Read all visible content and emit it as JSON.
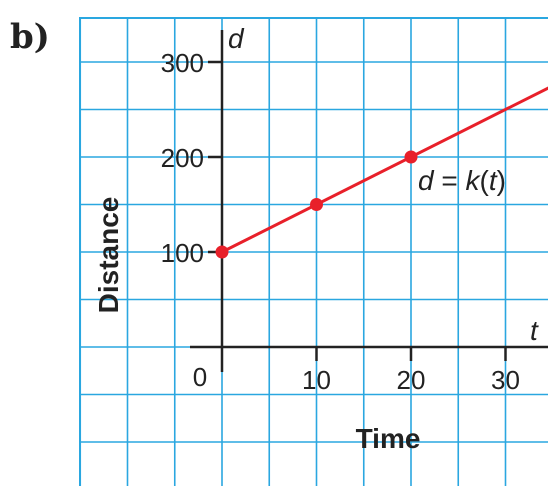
{
  "part_label": "b)",
  "chart_data": {
    "type": "line",
    "xlabel": "Time",
    "ylabel": "Distance",
    "x_axis_var": "t",
    "y_axis_var": "d",
    "origin_label": "0",
    "x_ticks": [
      10,
      20,
      30
    ],
    "y_ticks": [
      100,
      200,
      300
    ],
    "xlim": [
      -15,
      35
    ],
    "ylim": [
      -50,
      350
    ],
    "grid": true,
    "series": [
      {
        "name": "d = k(t)",
        "points": [
          [
            0,
            100
          ],
          [
            10,
            150
          ],
          [
            20,
            200
          ]
        ],
        "line_to_x": 35,
        "color": "#e8202a"
      }
    ],
    "equation": {
      "lhs": "d",
      "eq": " = ",
      "fn": "k",
      "open": "(",
      "arg": "t",
      "close": ")"
    },
    "grid_color": "#2aa7e0",
    "axis_color": "#222222"
  }
}
